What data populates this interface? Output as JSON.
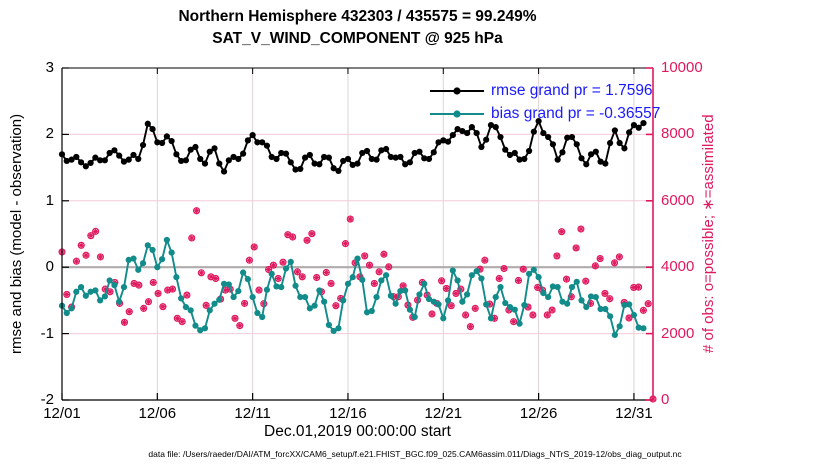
{
  "title": {
    "line1": "Northern Hemisphere 432303 / 435575 = 99.249%",
    "line2": "SAT_V_WIND_COMPONENT @ 925 hPa"
  },
  "legend": [
    {
      "label": "rmse grand pr = 1.7596",
      "color": "#000000"
    },
    {
      "label": "bias grand pr = -0.36557",
      "color": "#128b8b"
    }
  ],
  "footer": "data file: /Users/raeder/DAI/ATM_forcXX/CAM6_setup/f.e21.FHIST_BGC.f09_025.CAM6assim.011/Diags_NTrS_2019-12/obs_diag_output.nc",
  "colors": {
    "rmse": "#000000",
    "bias": "#128b8b",
    "obs": "#e0195f",
    "legend_text": "#1a1aff",
    "grid_horizontal": "#f2ccd7",
    "grid_vertical": "#ddd4d4",
    "zero_line": "#b0acac",
    "axis_left": "#000000",
    "axis_right": "#e0195f"
  },
  "chart_data": {
    "type": "line",
    "title": "Northern Hemisphere 432303 / 435575 = 99.249% | SAT_V_WIND_COMPONENT @ 925 hPa",
    "xlabel": "Dec.01,2019 00:00:00 start",
    "ylabel_left": "rmse and bias (model - observation)",
    "ylabel_right": "# of obs: o=possible; ∗=assimilated",
    "x_ticks": [
      "12/01",
      "12/06",
      "12/11",
      "12/16",
      "12/21",
      "12/26",
      "12/31"
    ],
    "x_tick_days": [
      0,
      5,
      10,
      15,
      20,
      25,
      30
    ],
    "x_range_days": [
      0,
      31
    ],
    "sample_interval_hours": 6,
    "ylim_left": [
      -2,
      3
    ],
    "y_ticks_left": [
      3,
      2,
      1,
      0,
      -1,
      -2
    ],
    "ylim_right": [
      0,
      10000
    ],
    "y_ticks_right": [
      0,
      2000,
      4000,
      6000,
      8000,
      10000
    ],
    "grid": true,
    "legend_position": "upper right inside plot",
    "series": [
      {
        "name": "rmse",
        "axis": "left",
        "color": "#000000",
        "marker": "filled-dot",
        "span_days": 30.5,
        "values": [
          1.7,
          1.6,
          1.62,
          1.66,
          1.58,
          1.52,
          1.57,
          1.65,
          1.61,
          1.61,
          1.72,
          1.76,
          1.68,
          1.59,
          1.62,
          1.69,
          1.63,
          1.84,
          2.16,
          2.08,
          1.88,
          1.87,
          1.97,
          1.9,
          1.7,
          1.6,
          1.61,
          1.77,
          1.81,
          1.63,
          1.56,
          1.74,
          1.79,
          1.56,
          1.44,
          1.61,
          1.66,
          1.63,
          1.71,
          1.91,
          1.99,
          1.88,
          1.88,
          1.83,
          1.66,
          1.63,
          1.72,
          1.71,
          1.58,
          1.47,
          1.48,
          1.65,
          1.69,
          1.56,
          1.55,
          1.66,
          1.65,
          1.49,
          1.45,
          1.6,
          1.63,
          1.54,
          1.56,
          1.72,
          1.75,
          1.63,
          1.62,
          1.76,
          1.78,
          1.66,
          1.65,
          1.66,
          1.55,
          1.58,
          1.72,
          1.74,
          1.64,
          1.63,
          1.73,
          1.88,
          1.91,
          1.89,
          1.99,
          2.08,
          2.05,
          2.02,
          2.11,
          2.02,
          1.81,
          1.92,
          2.14,
          2.11,
          1.96,
          1.77,
          1.69,
          1.72,
          1.62,
          1.63,
          1.75,
          2.04,
          2.2,
          2.02,
          1.96,
          1.85,
          1.62,
          1.73,
          1.95,
          1.96,
          1.85,
          1.64,
          1.55,
          1.7,
          1.74,
          1.59,
          1.56,
          1.87,
          2.06,
          1.87,
          1.79,
          2.03,
          2.14,
          2.1,
          2.17
        ]
      },
      {
        "name": "bias",
        "axis": "left",
        "color": "#128b8b",
        "marker": "filled-dot",
        "span_days": 30.5,
        "values": [
          -0.58,
          -0.69,
          -0.62,
          -0.37,
          -0.3,
          -0.43,
          -0.37,
          -0.35,
          -0.5,
          -0.44,
          -0.2,
          -0.27,
          -0.52,
          -0.3,
          0.11,
          0.13,
          -0.04,
          0.06,
          0.33,
          0.26,
          0.0,
          0.12,
          0.41,
          0.22,
          -0.15,
          -0.47,
          -0.6,
          -0.65,
          -0.88,
          -0.95,
          -0.92,
          -0.65,
          -0.55,
          -0.49,
          -0.25,
          -0.26,
          -0.45,
          -0.36,
          -0.08,
          -0.18,
          -0.45,
          -0.69,
          -0.75,
          -0.34,
          -0.1,
          -0.29,
          -0.3,
          -0.02,
          0.08,
          -0.28,
          -0.45,
          -0.45,
          -0.62,
          -0.58,
          -0.35,
          -0.52,
          -0.87,
          -0.96,
          -0.92,
          -0.5,
          -0.25,
          -0.15,
          0.13,
          -0.19,
          -0.68,
          -0.66,
          -0.45,
          -0.2,
          -0.12,
          -0.43,
          -0.55,
          -0.36,
          -0.35,
          -0.64,
          -0.75,
          -0.41,
          -0.25,
          -0.48,
          -0.52,
          -0.56,
          -0.77,
          -0.5,
          -0.05,
          -0.2,
          -0.52,
          -0.41,
          -0.12,
          -0.06,
          -0.17,
          -0.56,
          -0.77,
          -0.45,
          -0.3,
          -0.54,
          -0.6,
          -0.64,
          -0.85,
          -0.57,
          -0.1,
          -0.04,
          -0.15,
          -0.39,
          -0.45,
          -0.29,
          -0.3,
          -0.52,
          -0.55,
          -0.3,
          -0.22,
          -0.5,
          -0.6,
          -0.44,
          -0.45,
          -0.63,
          -0.63,
          -0.74,
          -1.02,
          -0.89,
          -0.57,
          -0.56,
          -0.72,
          -0.91,
          -0.92
        ]
      },
      {
        "name": "obs_count (o=possible and ∗=assimilated, overlapping)",
        "axis": "right",
        "color": "#e0195f",
        "marker": "circle-plus-asterisk",
        "span_days": 31,
        "values": [
          4460,
          3180,
          2800,
          4180,
          4660,
          4360,
          4950,
          5080,
          4310,
          3340,
          3260,
          3540,
          2910,
          2340,
          2660,
          3510,
          3460,
          2760,
          2960,
          3540,
          3210,
          2810,
          3310,
          3340,
          2460,
          2360,
          3160,
          4880,
          5700,
          3830,
          2850,
          3710,
          3660,
          3040,
          3310,
          3340,
          2460,
          2240,
          2910,
          4210,
          4610,
          3310,
          2900,
          3930,
          4060,
          3660,
          4150,
          4980,
          4910,
          3860,
          3710,
          4810,
          5010,
          3690,
          3260,
          3840,
          3510,
          2840,
          3060,
          4710,
          5450,
          4130,
          3710,
          4340,
          4060,
          3510,
          3860,
          4390,
          4010,
          3110,
          3110,
          3440,
          2860,
          2490,
          3010,
          3540,
          3160,
          2590,
          2910,
          3590,
          3360,
          2840,
          3210,
          3340,
          2560,
          2210,
          2760,
          3940,
          4210,
          2890,
          2460,
          3660,
          3960,
          2710,
          2360,
          3600,
          3940,
          2800,
          2560,
          3390,
          3310,
          2560,
          2710,
          4340,
          5070,
          3640,
          3110,
          4580,
          5150,
          3580,
          2910,
          4040,
          4260,
          3210,
          3050,
          4130,
          4310,
          2940,
          2470,
          3390,
          3400,
          2700,
          2900,
          30
        ]
      }
    ]
  }
}
